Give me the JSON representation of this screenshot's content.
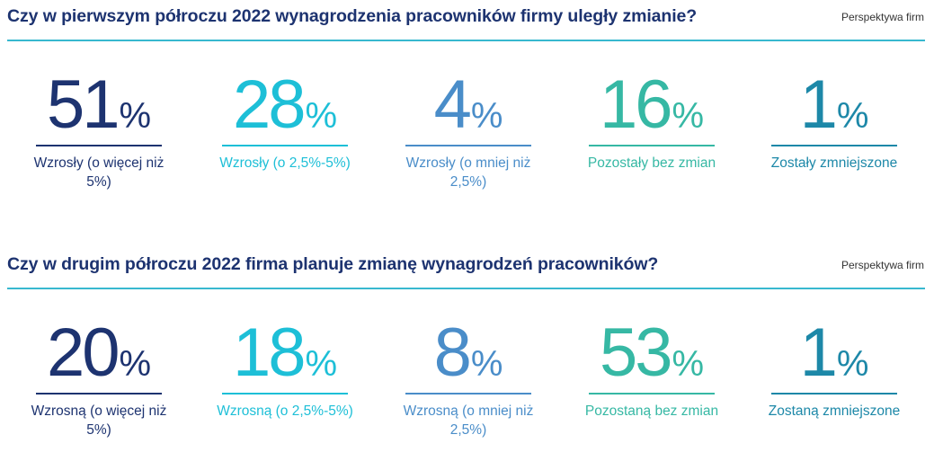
{
  "colors": [
    "#1d3370",
    "#1dbfd7",
    "#4a8dc9",
    "#36b8a4",
    "#1d88a8"
  ],
  "chart_data": [
    {
      "type": "table",
      "title": "Czy w pierwszym półroczu 2022 wynagrodzenia pracowników firmy uległy zmianie?",
      "source": "Perspektywa firm",
      "unit": "%",
      "categories": [
        "Wzrosły (o więcej niż 5%)",
        "Wzrosły (o 2,5%-5%)",
        "Wzrosły (o mniej niż 2,5%)",
        "Pozostały bez zmian",
        "Zostały zmniejszone"
      ],
      "values": [
        51,
        28,
        4,
        16,
        1
      ]
    },
    {
      "type": "table",
      "title": "Czy w drugim półroczu 2022 firma planuje zmianę wynagrodzeń pracowników?",
      "source": "Perspektywa firm",
      "unit": "%",
      "categories": [
        "Wzrosną (o więcej niż 5%)",
        "Wzrosną (o 2,5%-5%)",
        "Wzrosną (o mniej niż 2,5%)",
        "Pozostaną bez zmian",
        "Zostaną zmniejszone"
      ],
      "values": [
        20,
        18,
        8,
        53,
        1
      ]
    }
  ]
}
